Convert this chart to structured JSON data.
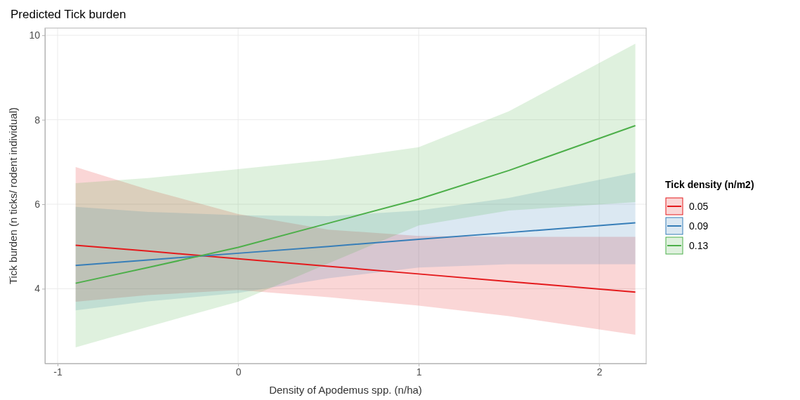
{
  "chart_data": {
    "type": "line",
    "title": "Predicted Tick burden",
    "xlabel": "Density of Apodemus spp. (n/ha)",
    "ylabel": "Tick burden (n ticks/ rodent individual)",
    "legend_title": "Tick density (n/m2)",
    "x": [
      -0.9,
      -0.5,
      0,
      0.5,
      1,
      1.5,
      2.2
    ],
    "series": [
      {
        "name": "0.05",
        "color": "#e41a1c",
        "values": [
          5.03,
          4.89,
          4.71,
          4.53,
          4.35,
          4.17,
          3.92
        ],
        "lower": [
          3.69,
          3.85,
          3.97,
          3.8,
          3.6,
          3.35,
          2.91
        ],
        "upper": [
          6.88,
          6.35,
          5.77,
          5.4,
          5.25,
          5.23,
          5.23
        ]
      },
      {
        "name": "0.09",
        "color": "#377eb8",
        "values": [
          4.55,
          4.68,
          4.84,
          5.0,
          5.17,
          5.33,
          5.56
        ],
        "lower": [
          3.49,
          3.7,
          3.9,
          4.25,
          4.5,
          4.58,
          4.58
        ],
        "upper": [
          5.94,
          5.82,
          5.74,
          5.72,
          5.85,
          6.15,
          6.75
        ]
      },
      {
        "name": "0.13",
        "color": "#4daf4a",
        "values": [
          4.13,
          4.5,
          4.98,
          5.55,
          6.12,
          6.8,
          7.86
        ],
        "lower": [
          2.61,
          3.1,
          3.69,
          4.6,
          5.5,
          5.85,
          6.05
        ],
        "upper": [
          6.5,
          6.62,
          6.83,
          7.05,
          7.35,
          8.2,
          9.8
        ]
      }
    ],
    "xlim": [
      -1.07,
      2.26
    ],
    "xticks": [
      -1,
      0,
      1,
      2
    ],
    "ylim": [
      2.23,
      10.17
    ],
    "yticks": [
      4,
      6,
      8,
      10
    ],
    "grid": true,
    "legend": "right",
    "marker": "none",
    "line_style": "solid"
  }
}
